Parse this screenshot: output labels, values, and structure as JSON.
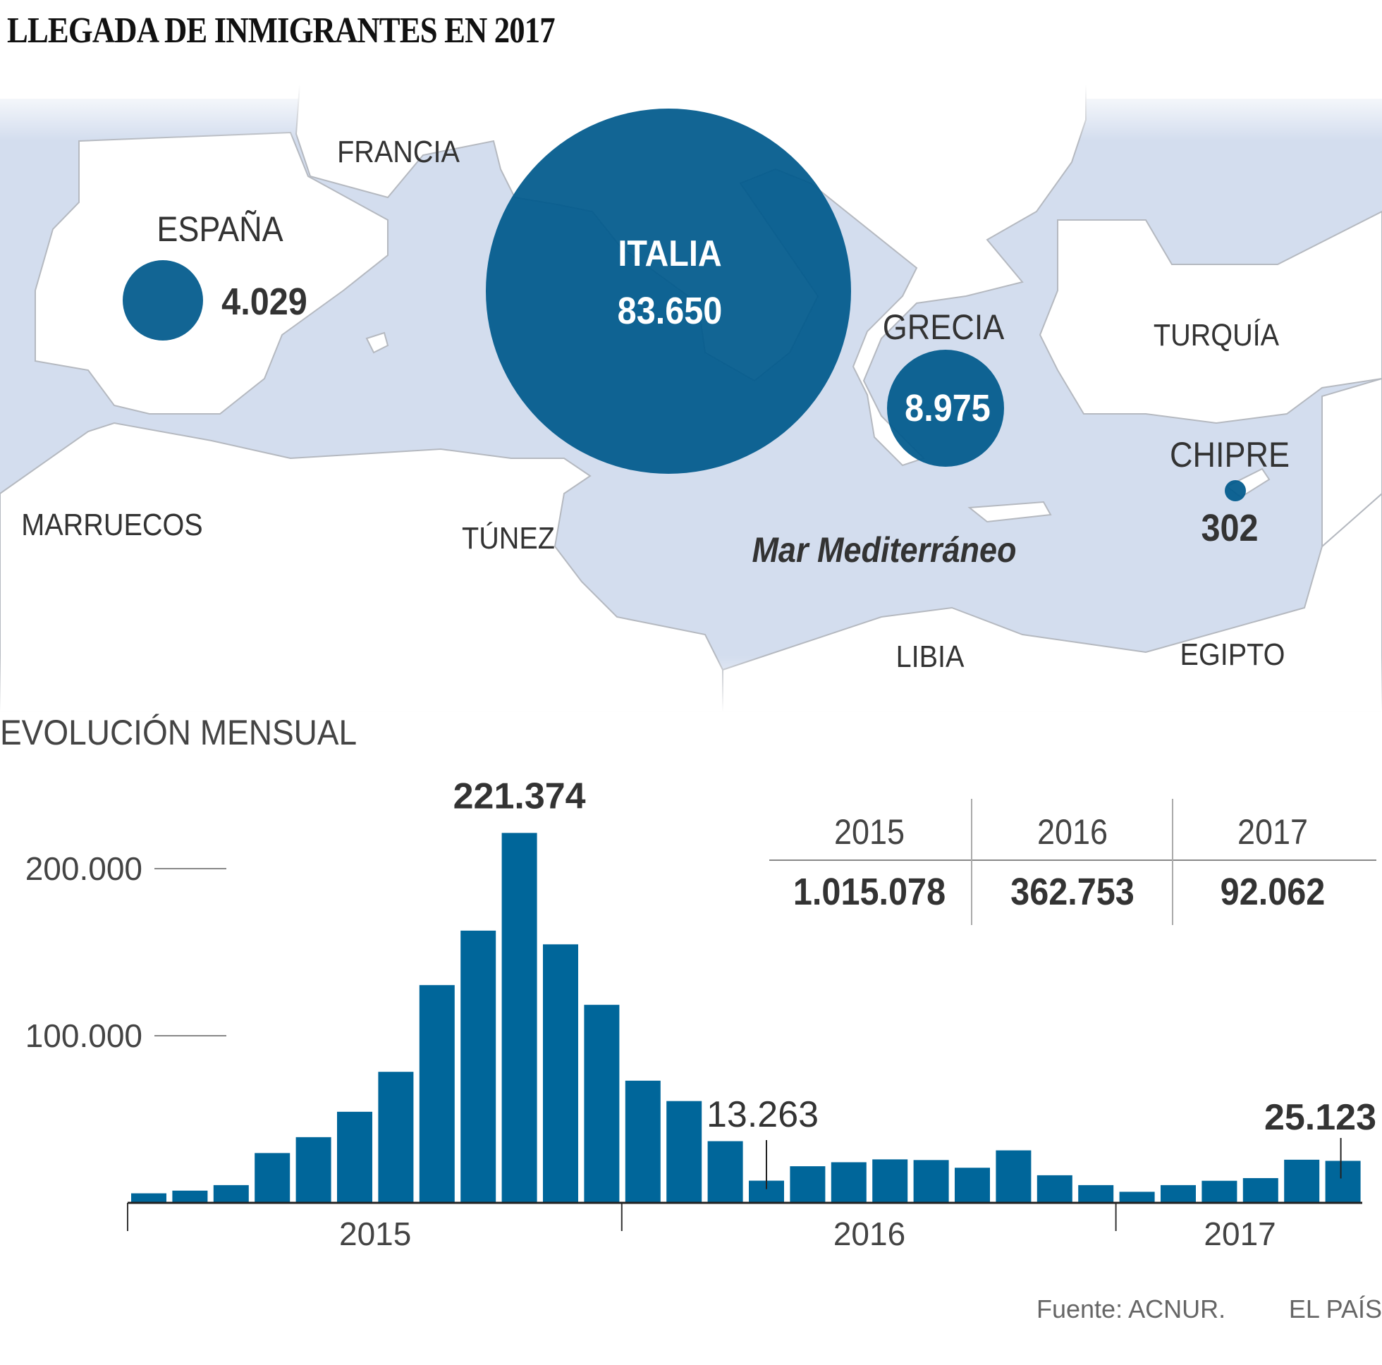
{
  "title": "LLEGADA DE INMIGRANTES EN 2017",
  "map": {
    "sea_label": "Mar Mediterráneo",
    "countries": [
      "FRANCIA",
      "MARRUECOS",
      "TÚNEZ",
      "TURQUÍA",
      "LIBIA",
      "EGIPTO"
    ],
    "bubbles": [
      {
        "country": "ESPAÑA",
        "value": "4.029",
        "arrivals": 4029
      },
      {
        "country": "ITALIA",
        "value": "83.650",
        "arrivals": 83650
      },
      {
        "country": "GRECIA",
        "value": "8.975",
        "arrivals": 8975
      },
      {
        "country": "CHIPRE",
        "value": "302",
        "arrivals": 302
      }
    ],
    "colors": {
      "bubble": "#00598c",
      "sea": "#d3ddee",
      "land": "#ffffff",
      "border": "#b5b9c0"
    }
  },
  "subtitle": "EVOLUCIÓN MENSUAL",
  "totals": {
    "headers": [
      "2015",
      "2016",
      "2017"
    ],
    "values": [
      "1.015.078",
      "362.753",
      "92.062"
    ]
  },
  "chart_data": {
    "type": "bar",
    "title": "EVOLUCIÓN MENSUAL",
    "ylim": [
      0,
      230000
    ],
    "yticks": [
      100000,
      200000
    ],
    "ytick_labels": [
      "100.000",
      "200.000"
    ],
    "groups": [
      {
        "label": "2015",
        "values": [
          5700,
          7300,
          10600,
          29800,
          39300,
          54500,
          78400,
          130300,
          162900,
          221374,
          154700,
          118500
        ]
      },
      {
        "label": "2016",
        "values": [
          73100,
          60900,
          36900,
          13263,
          21900,
          24300,
          26000,
          25600,
          21000,
          31400,
          16500,
          10600
        ]
      },
      {
        "label": "2017",
        "values": [
          6600,
          10600,
          13200,
          14800,
          25800,
          25123
        ]
      }
    ],
    "annotations": [
      {
        "group": 0,
        "index": 9,
        "text": "221.374"
      },
      {
        "group": 1,
        "index": 3,
        "text": "13.263"
      },
      {
        "group": 2,
        "index": 5,
        "text": "25.123"
      }
    ],
    "bar_color": "#00669a",
    "grid": false
  },
  "footer": {
    "source": "Fuente: ACNUR.",
    "brand": "EL PAÍS"
  }
}
